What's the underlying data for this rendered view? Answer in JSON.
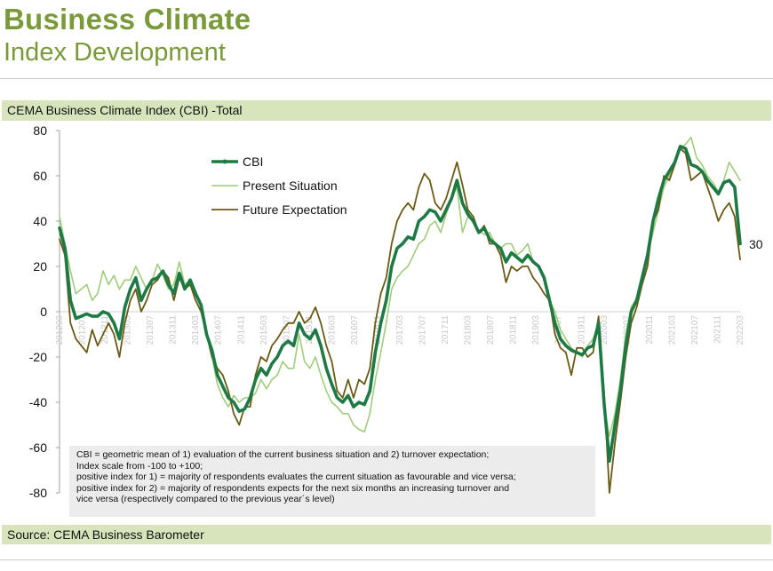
{
  "page": {
    "title": "Business Climate",
    "subtitle": "Index Development",
    "chart_header": "CEMA Business Climate Index (CBI) -Total",
    "source": "Source: CEMA Business Barometer",
    "note_lines": [
      "CBI = geometric mean of 1) evaluation of the current business situation and 2) turnover expectation;",
      "Index scale from -100 to +100;",
      "positive index for 1) = majority of respondents evaluates the current situation as favourable and vice versa;",
      "positive index for 2) = majority of respondents expects for the next six months an increasing turnover and",
      "vice versa (respectively compared to the previous year´s level)"
    ],
    "end_label": "30"
  },
  "colors": {
    "band": "#d8e4bc",
    "title": "#7a9a3a",
    "cbi": "#1e7a45",
    "present": "#9fcd7a",
    "future": "#6b5a14"
  },
  "chart_data": {
    "type": "line",
    "ylim": [
      -80,
      80
    ],
    "yticks": [
      80,
      60,
      40,
      20,
      0,
      -20,
      -40,
      -60,
      -80
    ],
    "x_start": "2012-03",
    "x_end": "2022-03",
    "xtick_labels": [
      "201203",
      "201207",
      "201211",
      "201303",
      "201307",
      "201311",
      "201403",
      "201407",
      "201411",
      "201503",
      "201507",
      "201511",
      "201603",
      "201607",
      "201611",
      "201703",
      "201707",
      "201711",
      "201803",
      "201807",
      "201811",
      "201903",
      "201907",
      "201911",
      "202003",
      "202007",
      "202011",
      "202103",
      "202107",
      "202111",
      "202203"
    ],
    "legend": [
      "CBI",
      "Present Situation",
      "Future Expectation"
    ],
    "legend_position": "top-left",
    "series": [
      {
        "name": "CBI",
        "values": [
          37,
          28,
          5,
          -3,
          -2,
          -1,
          -2,
          -2,
          0,
          -1,
          -5,
          -12,
          2,
          10,
          15,
          5,
          10,
          14,
          15,
          18,
          12,
          8,
          17,
          10,
          14,
          8,
          3,
          -10,
          -17,
          -28,
          -33,
          -38,
          -40,
          -44,
          -43,
          -38,
          -30,
          -25,
          -28,
          -23,
          -20,
          -15,
          -13,
          -15,
          -5,
          -10,
          -12,
          -8,
          -15,
          -25,
          -32,
          -38,
          -40,
          -37,
          -42,
          -40,
          -41,
          -35,
          -18,
          -5,
          5,
          20,
          28,
          30,
          33,
          32,
          40,
          42,
          45,
          44,
          40,
          45,
          50,
          58,
          48,
          43,
          40,
          35,
          37,
          32,
          30,
          28,
          22,
          26,
          24,
          22,
          25,
          22,
          20,
          15,
          5,
          -5,
          -12,
          -15,
          -17,
          -18,
          -19,
          -16,
          -15,
          -5,
          -40,
          -66,
          -50,
          -35,
          -15,
          0,
          5,
          15,
          25,
          40,
          50,
          58,
          62,
          66,
          73,
          72,
          65,
          64,
          62,
          58,
          55,
          52,
          57,
          58,
          55,
          30
        ]
      },
      {
        "name": "Present Situation",
        "values": [
          42,
          30,
          18,
          8,
          10,
          12,
          5,
          8,
          18,
          12,
          16,
          10,
          14,
          14,
          20,
          15,
          10,
          14,
          21,
          16,
          10,
          12,
          22,
          12,
          14,
          8,
          2,
          -10,
          -20,
          -32,
          -38,
          -42,
          -37,
          -40,
          -38,
          -38,
          -36,
          -30,
          -34,
          -30,
          -28,
          -22,
          -25,
          -25,
          -10,
          -22,
          -25,
          -20,
          -28,
          -35,
          -40,
          -42,
          -45,
          -45,
          -50,
          -52,
          -53,
          -45,
          -30,
          -18,
          -5,
          10,
          15,
          18,
          20,
          25,
          30,
          32,
          38,
          40,
          35,
          43,
          50,
          55,
          35,
          42,
          40,
          36,
          34,
          35,
          30,
          28,
          30,
          30,
          25,
          27,
          30,
          22,
          20,
          15,
          5,
          0,
          -8,
          -12,
          -16,
          -18,
          -20,
          -15,
          -12,
          -5,
          -42,
          -55,
          -45,
          -30,
          -10,
          2,
          6,
          15,
          25,
          35,
          45,
          55,
          60,
          65,
          72,
          74,
          77,
          68,
          65,
          60,
          57,
          53,
          58,
          66,
          62,
          58
        ]
      },
      {
        "name": "Future Expectation",
        "values": [
          32,
          25,
          -5,
          -12,
          -15,
          -18,
          -8,
          -15,
          -10,
          -5,
          -10,
          -20,
          -5,
          5,
          10,
          0,
          5,
          12,
          14,
          18,
          15,
          5,
          15,
          10,
          12,
          5,
          0,
          -10,
          -20,
          -25,
          -28,
          -35,
          -45,
          -50,
          -42,
          -42,
          -28,
          -20,
          -22,
          -15,
          -12,
          -8,
          -5,
          -5,
          0,
          -5,
          -3,
          2,
          -5,
          -15,
          -22,
          -35,
          -38,
          -30,
          -38,
          -30,
          -32,
          -25,
          -5,
          8,
          15,
          30,
          40,
          45,
          48,
          45,
          55,
          61,
          58,
          48,
          45,
          50,
          58,
          66,
          56,
          45,
          42,
          35,
          38,
          30,
          30,
          25,
          13,
          20,
          18,
          20,
          20,
          15,
          12,
          8,
          5,
          -10,
          -16,
          -18,
          -28,
          -16,
          -16,
          -20,
          -18,
          -2,
          -35,
          -80,
          -58,
          -40,
          -20,
          -5,
          2,
          12,
          20,
          40,
          45,
          60,
          58,
          65,
          72,
          70,
          58,
          60,
          62,
          55,
          48,
          40,
          45,
          48,
          42,
          23
        ]
      }
    ]
  }
}
